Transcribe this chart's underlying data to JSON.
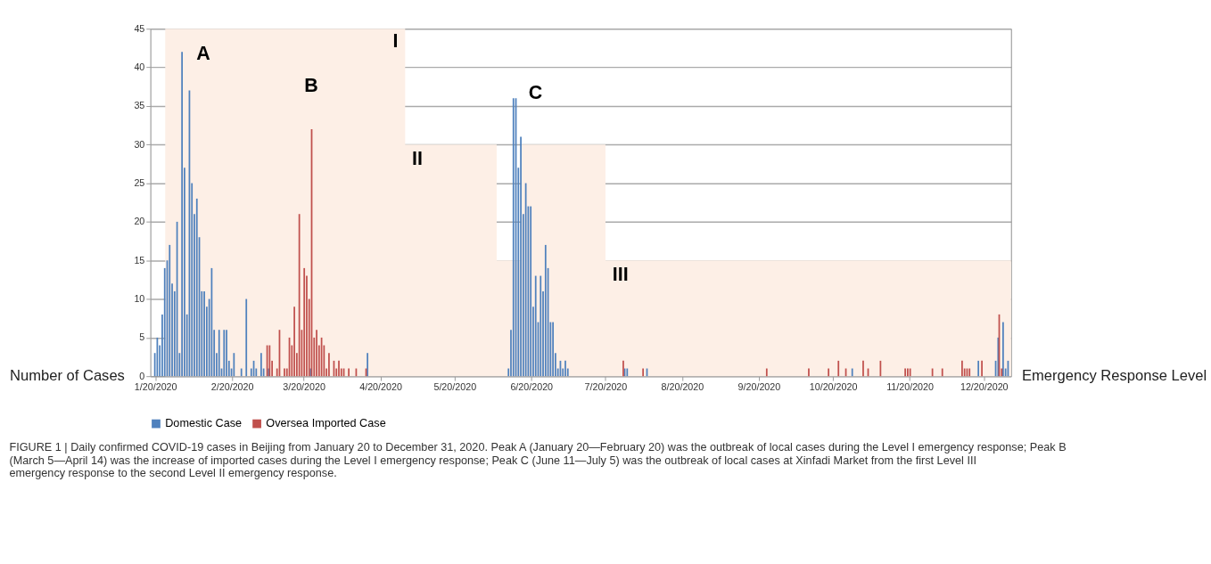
{
  "chart_data": {
    "type": "bar",
    "ylabel": "Number of Cases",
    "y2label": "Emergency Response Level",
    "xlim": [
      "2020-01-18",
      "2020-12-31"
    ],
    "xticks": [
      {
        "value": "2020-01-20",
        "label": "1/20/2020"
      },
      {
        "value": "2020-02-20",
        "label": "2/20/2020"
      },
      {
        "value": "2020-03-20",
        "label": "3/20/2020"
      },
      {
        "value": "2020-04-20",
        "label": "4/20/2020"
      },
      {
        "value": "2020-05-20",
        "label": "5/20/2020"
      },
      {
        "value": "2020-06-20",
        "label": "6/20/2020"
      },
      {
        "value": "2020-07-20",
        "label": "7/20/2020"
      },
      {
        "value": "2020-08-20",
        "label": "8/20/2020"
      },
      {
        "value": "2020-09-20",
        "label": "9/20/2020"
      },
      {
        "value": "2020-10-20",
        "label": "10/20/2020"
      },
      {
        "value": "2020-11-20",
        "label": "11/20/2020"
      },
      {
        "value": "2020-12-20",
        "label": "12/20/2020"
      }
    ],
    "ylim": [
      0,
      45
    ],
    "yticks": [
      0,
      5,
      10,
      15,
      20,
      25,
      30,
      35,
      40,
      45
    ],
    "grid": "y",
    "legend": "bottom",
    "series": [
      {
        "type": "area",
        "color": "#fdefe6",
        "x": [
          "2020-01-24",
          "2020-04-30",
          "2020-06-06",
          "2020-06-16",
          "2020-07-20",
          "2020-12-31"
        ],
        "values": [
          45,
          30,
          15,
          30,
          15,
          15
        ]
      },
      {
        "name": "Domestic Case",
        "color": "#4f81bd",
        "x": [
          "2020-01-20",
          "2020-01-21",
          "2020-01-22",
          "2020-01-23",
          "2020-01-24",
          "2020-01-25",
          "2020-01-26",
          "2020-01-27",
          "2020-01-28",
          "2020-01-29",
          "2020-01-30",
          "2020-01-31",
          "2020-02-01",
          "2020-02-02",
          "2020-02-03",
          "2020-02-04",
          "2020-02-05",
          "2020-02-06",
          "2020-02-07",
          "2020-02-08",
          "2020-02-09",
          "2020-02-10",
          "2020-02-11",
          "2020-02-12",
          "2020-02-13",
          "2020-02-14",
          "2020-02-15",
          "2020-02-16",
          "2020-02-17",
          "2020-02-18",
          "2020-02-19",
          "2020-02-20",
          "2020-02-21",
          "2020-02-24",
          "2020-02-26",
          "2020-02-28",
          "2020-02-29",
          "2020-03-01",
          "2020-03-03",
          "2020-03-04",
          "2020-03-06",
          "2020-03-23",
          "2020-04-15",
          "2020-06-11",
          "2020-06-12",
          "2020-06-13",
          "2020-06-14",
          "2020-06-15",
          "2020-06-16",
          "2020-06-17",
          "2020-06-18",
          "2020-06-19",
          "2020-06-20",
          "2020-06-21",
          "2020-06-22",
          "2020-06-23",
          "2020-06-24",
          "2020-06-25",
          "2020-06-26",
          "2020-06-27",
          "2020-06-28",
          "2020-06-29",
          "2020-06-30",
          "2020-07-01",
          "2020-07-02",
          "2020-07-03",
          "2020-07-04",
          "2020-07-05",
          "2020-07-28",
          "2020-07-29",
          "2020-08-06",
          "2020-10-28",
          "2020-12-18",
          "2020-12-25",
          "2020-12-26",
          "2020-12-28",
          "2020-12-29",
          "2020-12-30"
        ],
        "values": [
          3,
          5,
          4,
          8,
          14,
          15,
          17,
          12,
          11,
          20,
          3,
          42,
          27,
          8,
          37,
          25,
          21,
          23,
          18,
          11,
          11,
          9,
          10,
          14,
          6,
          3,
          6,
          1,
          6,
          6,
          2,
          1,
          3,
          1,
          10,
          1,
          2,
          1,
          3,
          1,
          1,
          1,
          3,
          1,
          6,
          36,
          36,
          27,
          31,
          21,
          25,
          22,
          22,
          9,
          13,
          7,
          13,
          11,
          17,
          14,
          7,
          7,
          3,
          1,
          2,
          1,
          2,
          1,
          1,
          1,
          1,
          1,
          2,
          2,
          5,
          7,
          1,
          2
        ]
      },
      {
        "name": "Oversea Imported Case",
        "color": "#c0504d",
        "x": [
          "2020-03-05",
          "2020-03-06",
          "2020-03-07",
          "2020-03-09",
          "2020-03-10",
          "2020-03-12",
          "2020-03-13",
          "2020-03-14",
          "2020-03-15",
          "2020-03-16",
          "2020-03-17",
          "2020-03-18",
          "2020-03-19",
          "2020-03-20",
          "2020-03-21",
          "2020-03-22",
          "2020-03-23",
          "2020-03-24",
          "2020-03-25",
          "2020-03-26",
          "2020-03-27",
          "2020-03-28",
          "2020-03-29",
          "2020-03-30",
          "2020-04-01",
          "2020-04-02",
          "2020-04-03",
          "2020-04-04",
          "2020-04-05",
          "2020-04-07",
          "2020-04-10",
          "2020-04-14",
          "2020-07-27",
          "2020-08-04",
          "2020-09-23",
          "2020-10-10",
          "2020-10-18",
          "2020-10-22",
          "2020-10-25",
          "2020-11-01",
          "2020-11-03",
          "2020-11-08",
          "2020-11-18",
          "2020-11-19",
          "2020-11-20",
          "2020-11-29",
          "2020-12-03",
          "2020-12-11",
          "2020-12-12",
          "2020-12-13",
          "2020-12-14",
          "2020-12-19",
          "2020-12-26",
          "2020-12-27"
        ],
        "values": [
          4,
          4,
          2,
          1,
          6,
          1,
          1,
          5,
          4,
          9,
          3,
          21,
          6,
          14,
          13,
          10,
          32,
          5,
          6,
          4,
          5,
          4,
          1,
          3,
          2,
          1,
          2,
          1,
          1,
          1,
          1,
          1,
          2,
          1,
          1,
          1,
          1,
          2,
          1,
          2,
          1,
          2,
          1,
          1,
          1,
          1,
          1,
          2,
          1,
          1,
          1,
          2,
          8,
          1
        ]
      }
    ],
    "annotations": [
      {
        "text": "A",
        "x": "2020-01-31",
        "y": 42
      },
      {
        "text": "B",
        "x": "2020-03-23",
        "y": 32
      },
      {
        "text": "C",
        "x": "2020-06-14",
        "y": 36
      },
      {
        "text": "I",
        "x": "2020-04-30",
        "y": 45
      },
      {
        "text": "II",
        "x": "2020-04-30",
        "y": 30
      },
      {
        "text": "III",
        "x": "2020-07-20",
        "y": 15
      },
      "FIGURE 1 | Daily confirmed COVID-19 cases in Beijing from January 20 to December 31, 2020. Peak A (January 20—February 20) was the outbreak of local cases during the Level I emergency response; Peak B (March 5—April 14) was the increase of imported cases during the Level I emergency response; Peak C (June 11—July 5) was the outbreak of local cases at Xinfadi Market from the first Level III emergency response to the second Level II emergency response."
    ]
  }
}
